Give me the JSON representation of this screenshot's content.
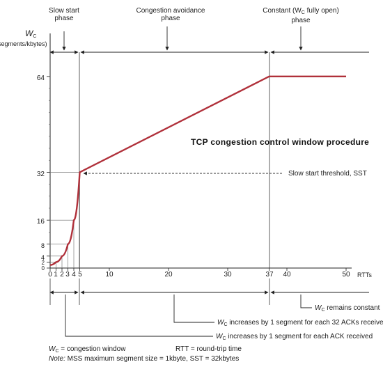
{
  "phases": {
    "slow_start": [
      "Slow start",
      "phase"
    ],
    "congestion_avoidance": [
      "Congestion avoidance",
      "phase"
    ],
    "constant_prefix": "Constant (W",
    "constant_sub": "C",
    "constant_suffix": " fully open)",
    "constant_line2": "phase"
  },
  "y_axis": {
    "symbol": "W",
    "symbol_sub": "C",
    "units": "(segments/kbytes)",
    "ticks": [
      "64",
      "32",
      "16",
      "8",
      "4",
      "2",
      "0"
    ]
  },
  "x_axis": {
    "unit_label": "RTTs",
    "ticks": [
      "0",
      "1",
      "2",
      "3",
      "4",
      "5",
      "10",
      "20",
      "30",
      "37",
      "40",
      "50"
    ]
  },
  "title": "TCP congestion control window procedure",
  "annotation_sst": "Slow start threshold, SST",
  "notes": {
    "remains_constant": " remains constant",
    "per_32_acks": " increases by 1 segment for each 32 ACKs received",
    "per_ack": " increases by 1 segment for each ACK received"
  },
  "footer": {
    "cw_def": " = congestion window",
    "rtt_def": "RTT = round-trip time",
    "note_label": "Note:",
    "note_text": " MSS maximum segment size = 1kbyte, SST = 32kbytes"
  },
  "chart_data": {
    "type": "line",
    "title": "TCP congestion control window procedure",
    "xlabel": "RTTs",
    "ylabel": "W_C (segments/kbytes)",
    "x_ticks": [
      0,
      1,
      2,
      3,
      4,
      5,
      10,
      20,
      30,
      37,
      40,
      50
    ],
    "y_ticks": [
      0,
      2,
      4,
      8,
      16,
      32,
      64
    ],
    "series": [
      {
        "x": [
          0,
          1,
          2,
          3,
          4,
          5,
          37,
          50
        ],
        "y": [
          1,
          2,
          4,
          8,
          16,
          32,
          64,
          64
        ]
      }
    ],
    "annotations": [
      "Slow start threshold, SST"
    ]
  }
}
